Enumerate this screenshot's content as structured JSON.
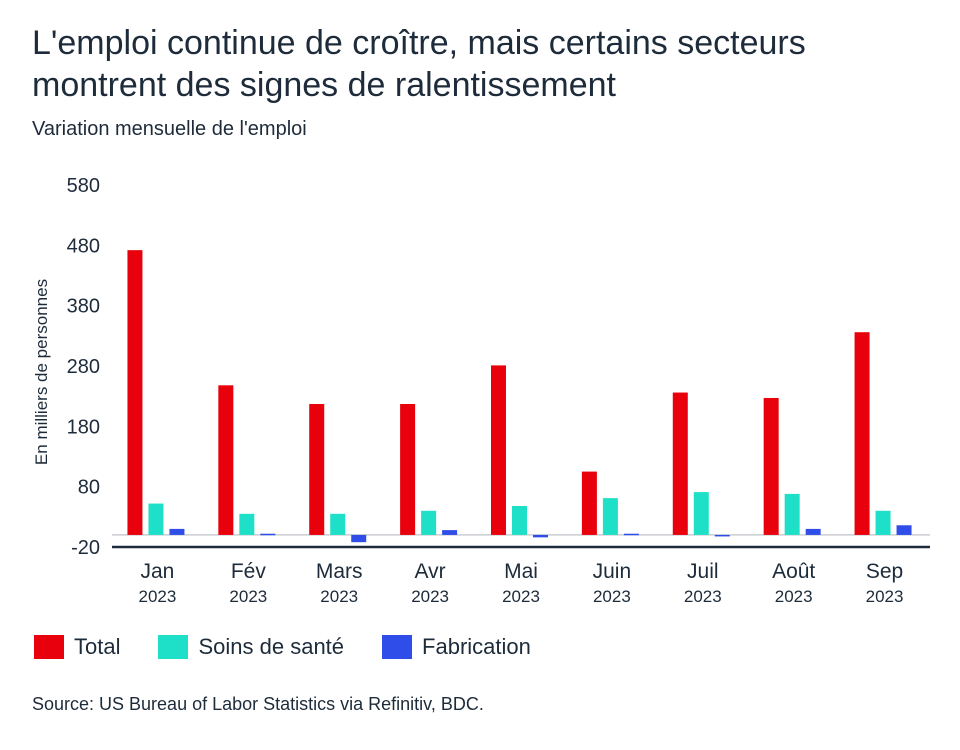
{
  "title": "L'emploi continue de croître, mais certains secteurs montrent des signes de ralentissement",
  "subtitle": "Variation mensuelle de l'emploi",
  "source": "Source: US Bureau of Labor Statistics via Refinitiv, BDC.",
  "chart_data": {
    "type": "bar",
    "categories": [
      "Jan",
      "Fév",
      "Mars",
      "Avr",
      "Mai",
      "Juin",
      "Juil",
      "Août",
      "Sep"
    ],
    "category_sublabel": "2023",
    "ylabel": "En milliers de personnes",
    "ylim": [
      -20,
      580
    ],
    "yticks": [
      -20,
      80,
      180,
      280,
      380,
      480,
      580
    ],
    "grid": false,
    "legend_position": "bottom-left",
    "series": [
      {
        "name": "Total",
        "color": "#e8000d",
        "values": [
          472,
          248,
          217,
          217,
          281,
          105,
          236,
          227,
          336
        ]
      },
      {
        "name": "Soins de santé",
        "color": "#1ee0c8",
        "values": [
          52,
          35,
          35,
          40,
          48,
          61,
          71,
          68,
          40
        ]
      },
      {
        "name": "Fabrication",
        "color": "#2f4de8",
        "values": [
          10,
          2,
          -12,
          8,
          -4,
          2,
          -2,
          10,
          16
        ]
      }
    ]
  }
}
